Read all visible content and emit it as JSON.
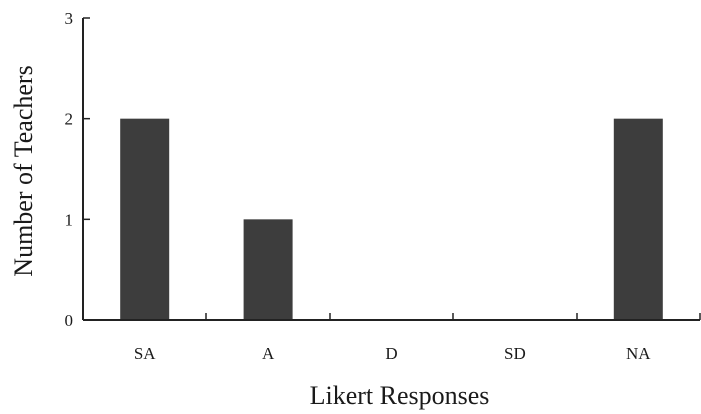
{
  "chart_data": {
    "type": "bar",
    "title": "",
    "xlabel": "Likert Responses",
    "ylabel": "Number of Teachers",
    "categories": [
      "SA",
      "A",
      "D",
      "SD",
      "NA"
    ],
    "values": [
      2,
      1,
      0,
      0,
      2
    ],
    "ylim": [
      0,
      3
    ],
    "yticks": [
      0,
      1,
      2,
      3
    ],
    "grid": false,
    "legend": "none",
    "colors": {
      "bar": "#3d3d3d",
      "axis": "#222222",
      "text": "#1a1a1a"
    }
  }
}
